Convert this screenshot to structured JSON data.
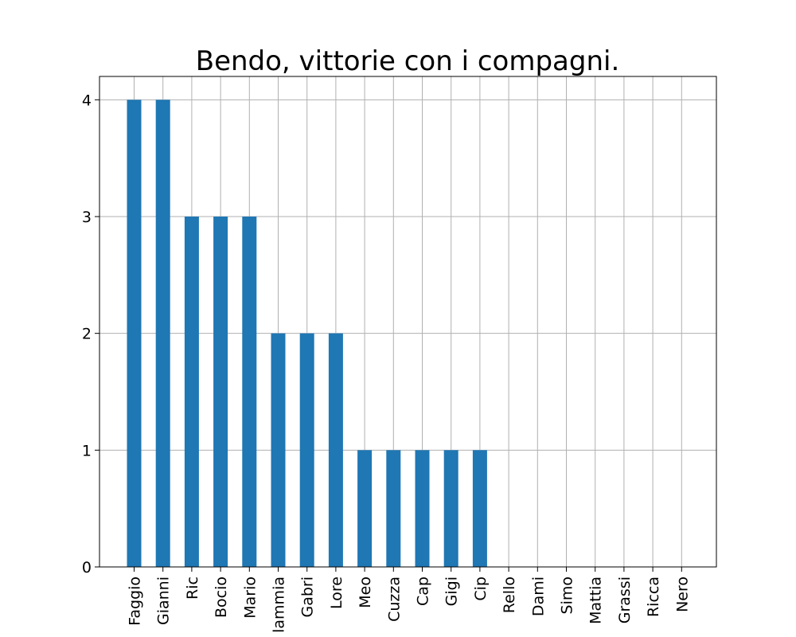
{
  "chart_data": {
    "type": "bar",
    "title": "Bendo, vittorie con i compagni.",
    "xlabel": "",
    "ylabel": "",
    "categories": [
      "Faggio",
      "Gianni",
      "Ric",
      "Bocio",
      "Mario",
      "lammia",
      "Gabri",
      "Lore",
      "Meo",
      "Cuzza",
      "Cap",
      "Gigi",
      "Cip",
      "Rello",
      "Dami",
      "Simo",
      "Mattia",
      "Grassi",
      "Ricca",
      "Nero"
    ],
    "values": [
      4,
      4,
      3,
      3,
      3,
      2,
      2,
      2,
      1,
      1,
      1,
      1,
      1,
      0,
      0,
      0,
      0,
      0,
      0,
      0
    ],
    "ylim": [
      0,
      4.2
    ],
    "yticks": [
      "0",
      "1",
      "2",
      "3",
      "4"
    ],
    "grid": true,
    "bar_color": "#1f77b4",
    "grid_color": "#b0b0b0"
  }
}
